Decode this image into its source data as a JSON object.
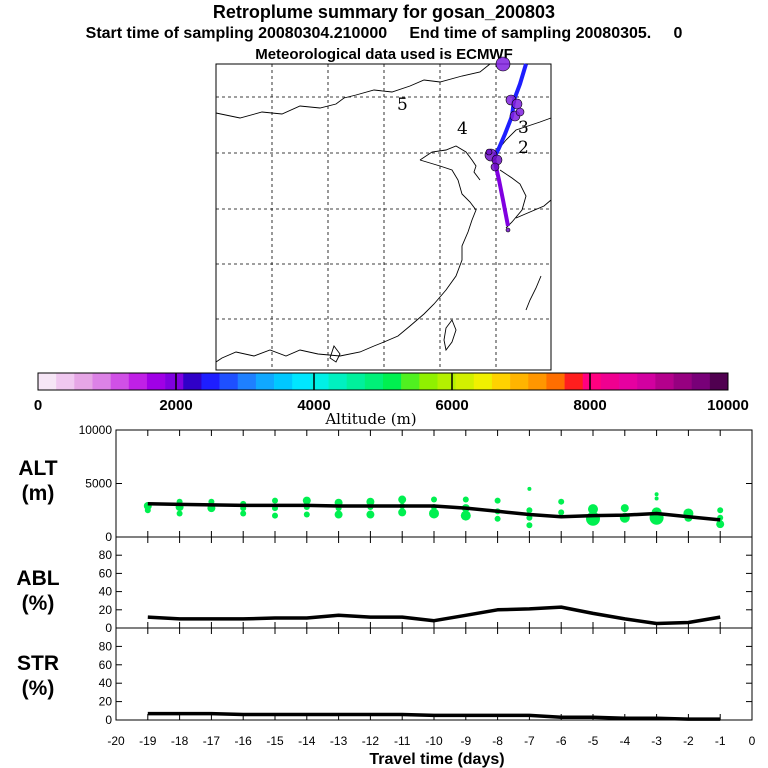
{
  "header": {
    "title": "Retroplume summary for gosan_200803",
    "sampling": "Start time of sampling 20080304.210000     End time of sampling 20080305.     0",
    "met": "Meteorological data used is ECMWF"
  },
  "map": {
    "day_labels": [
      "5",
      "4",
      "3",
      "2"
    ],
    "trajectory_color_start": "#1e1eff",
    "trajectory_color_end": "#8000e0"
  },
  "colorbar": {
    "colors": [
      "#f6e6f6",
      "#f0c8f0",
      "#e6a6e6",
      "#dc82e6",
      "#d050e6",
      "#c020e6",
      "#a000e6",
      "#8000e0",
      "#3000c8",
      "#1e1eff",
      "#1e50ff",
      "#1e80ff",
      "#10a8ff",
      "#00c8ff",
      "#00e6ff",
      "#00f0e6",
      "#00f0c0",
      "#00f09c",
      "#00f078",
      "#00f050",
      "#50f020",
      "#90f000",
      "#b4f000",
      "#d2f000",
      "#f0f000",
      "#ffd200",
      "#ffb400",
      "#ff9600",
      "#ff6e00",
      "#ff1e1e",
      "#ff0080",
      "#f00090",
      "#e600a0",
      "#d200a0",
      "#b4008c",
      "#960080",
      "#780078",
      "#500050"
    ],
    "tick_labels": [
      "0",
      "2000",
      "4000",
      "6000",
      "8000",
      "10000"
    ],
    "label": "Altitude (m)"
  },
  "panels": {
    "alt_label": "ALT",
    "alt_unit": "(m)",
    "abl_label": "ABL",
    "abl_unit": "(%)",
    "str_label": "STR",
    "str_unit": "(%)",
    "alt_yticks": [
      "10000",
      "5000",
      "0"
    ],
    "pct_yticks": [
      "80",
      "60",
      "40",
      "20",
      "0"
    ],
    "scatter_color": "#00f050"
  },
  "chart_data": {
    "type": "line",
    "xlabel": "Travel time (days)",
    "xlim": [
      -20,
      0
    ],
    "xtick_labels": [
      "-20",
      "-19",
      "-18",
      "-17",
      "-16",
      "-15",
      "-14",
      "-13",
      "-12",
      "-11",
      "-10",
      "-9",
      "-8",
      "-7",
      "-6",
      "-5",
      "-4",
      "-3",
      "-2",
      "-1",
      "0"
    ],
    "x": [
      -19,
      -18,
      -17,
      -16,
      -15,
      -14,
      -13,
      -12,
      -11,
      -10,
      -9,
      -8,
      -7,
      -6,
      -5,
      -4,
      -3,
      -2,
      -1
    ],
    "series": [
      {
        "name": "ALT",
        "ylim": [
          0,
          10000
        ],
        "values": [
          3100,
          3050,
          3000,
          2950,
          2950,
          2950,
          2900,
          2900,
          2900,
          2900,
          2700,
          2400,
          2100,
          1900,
          2000,
          2050,
          2200,
          1900,
          1600
        ]
      },
      {
        "name": "ABL",
        "ylim": [
          0,
          100
        ],
        "values": [
          12,
          10,
          10,
          10,
          11,
          11,
          14,
          12,
          12,
          8,
          14,
          20,
          21,
          23,
          16,
          10,
          5,
          6,
          12
        ]
      },
      {
        "name": "STR",
        "ylim": [
          0,
          100
        ],
        "values": [
          7,
          7,
          7,
          6,
          6,
          6,
          6,
          6,
          6,
          5,
          5,
          5,
          5,
          3,
          3,
          2,
          2,
          1,
          1
        ]
      }
    ],
    "alt_scatter": [
      {
        "x": -19,
        "y": 2900,
        "r": 4
      },
      {
        "x": -19,
        "y": 2500,
        "r": 3
      },
      {
        "x": -18,
        "y": 3300,
        "r": 3
      },
      {
        "x": -18,
        "y": 2800,
        "r": 4
      },
      {
        "x": -18,
        "y": 2200,
        "r": 3
      },
      {
        "x": -17,
        "y": 3300,
        "r": 3
      },
      {
        "x": -17,
        "y": 2700,
        "r": 4
      },
      {
        "x": -16,
        "y": 3100,
        "r": 3
      },
      {
        "x": -16,
        "y": 2700,
        "r": 3
      },
      {
        "x": -16,
        "y": 2200,
        "r": 3
      },
      {
        "x": -15,
        "y": 3400,
        "r": 3
      },
      {
        "x": -15,
        "y": 2700,
        "r": 3
      },
      {
        "x": -15,
        "y": 2000,
        "r": 3
      },
      {
        "x": -14,
        "y": 3400,
        "r": 4
      },
      {
        "x": -14,
        "y": 2800,
        "r": 3
      },
      {
        "x": -14,
        "y": 2100,
        "r": 3
      },
      {
        "x": -13,
        "y": 3200,
        "r": 4
      },
      {
        "x": -13,
        "y": 2700,
        "r": 3
      },
      {
        "x": -13,
        "y": 2100,
        "r": 4
      },
      {
        "x": -12,
        "y": 3300,
        "r": 4
      },
      {
        "x": -12,
        "y": 2800,
        "r": 3
      },
      {
        "x": -12,
        "y": 2100,
        "r": 4
      },
      {
        "x": -11,
        "y": 3500,
        "r": 4
      },
      {
        "x": -11,
        "y": 2900,
        "r": 3
      },
      {
        "x": -11,
        "y": 2300,
        "r": 4
      },
      {
        "x": -10,
        "y": 3500,
        "r": 3
      },
      {
        "x": -10,
        "y": 2800,
        "r": 3
      },
      {
        "x": -10,
        "y": 2200,
        "r": 5
      },
      {
        "x": -9,
        "y": 3500,
        "r": 3
      },
      {
        "x": -9,
        "y": 2700,
        "r": 4
      },
      {
        "x": -9,
        "y": 2000,
        "r": 5
      },
      {
        "x": -8,
        "y": 3400,
        "r": 3
      },
      {
        "x": -8,
        "y": 2400,
        "r": 3
      },
      {
        "x": -8,
        "y": 1700,
        "r": 3
      },
      {
        "x": -7,
        "y": 4500,
        "r": 2
      },
      {
        "x": -7,
        "y": 2500,
        "r": 3
      },
      {
        "x": -7,
        "y": 1800,
        "r": 3
      },
      {
        "x": -7,
        "y": 1100,
        "r": 3
      },
      {
        "x": -6,
        "y": 3300,
        "r": 3
      },
      {
        "x": -6,
        "y": 2300,
        "r": 3
      },
      {
        "x": -5,
        "y": 2600,
        "r": 5
      },
      {
        "x": -5,
        "y": 1700,
        "r": 7
      },
      {
        "x": -4,
        "y": 2700,
        "r": 4
      },
      {
        "x": -4,
        "y": 1800,
        "r": 5
      },
      {
        "x": -3,
        "y": 4000,
        "r": 2
      },
      {
        "x": -3,
        "y": 3600,
        "r": 2
      },
      {
        "x": -3,
        "y": 2300,
        "r": 5
      },
      {
        "x": -3,
        "y": 1800,
        "r": 7
      },
      {
        "x": -2,
        "y": 2200,
        "r": 5
      },
      {
        "x": -2,
        "y": 1800,
        "r": 4
      },
      {
        "x": -1,
        "y": 2500,
        "r": 3
      },
      {
        "x": -1,
        "y": 1800,
        "r": 3
      },
      {
        "x": -1,
        "y": 1200,
        "r": 4
      }
    ]
  }
}
